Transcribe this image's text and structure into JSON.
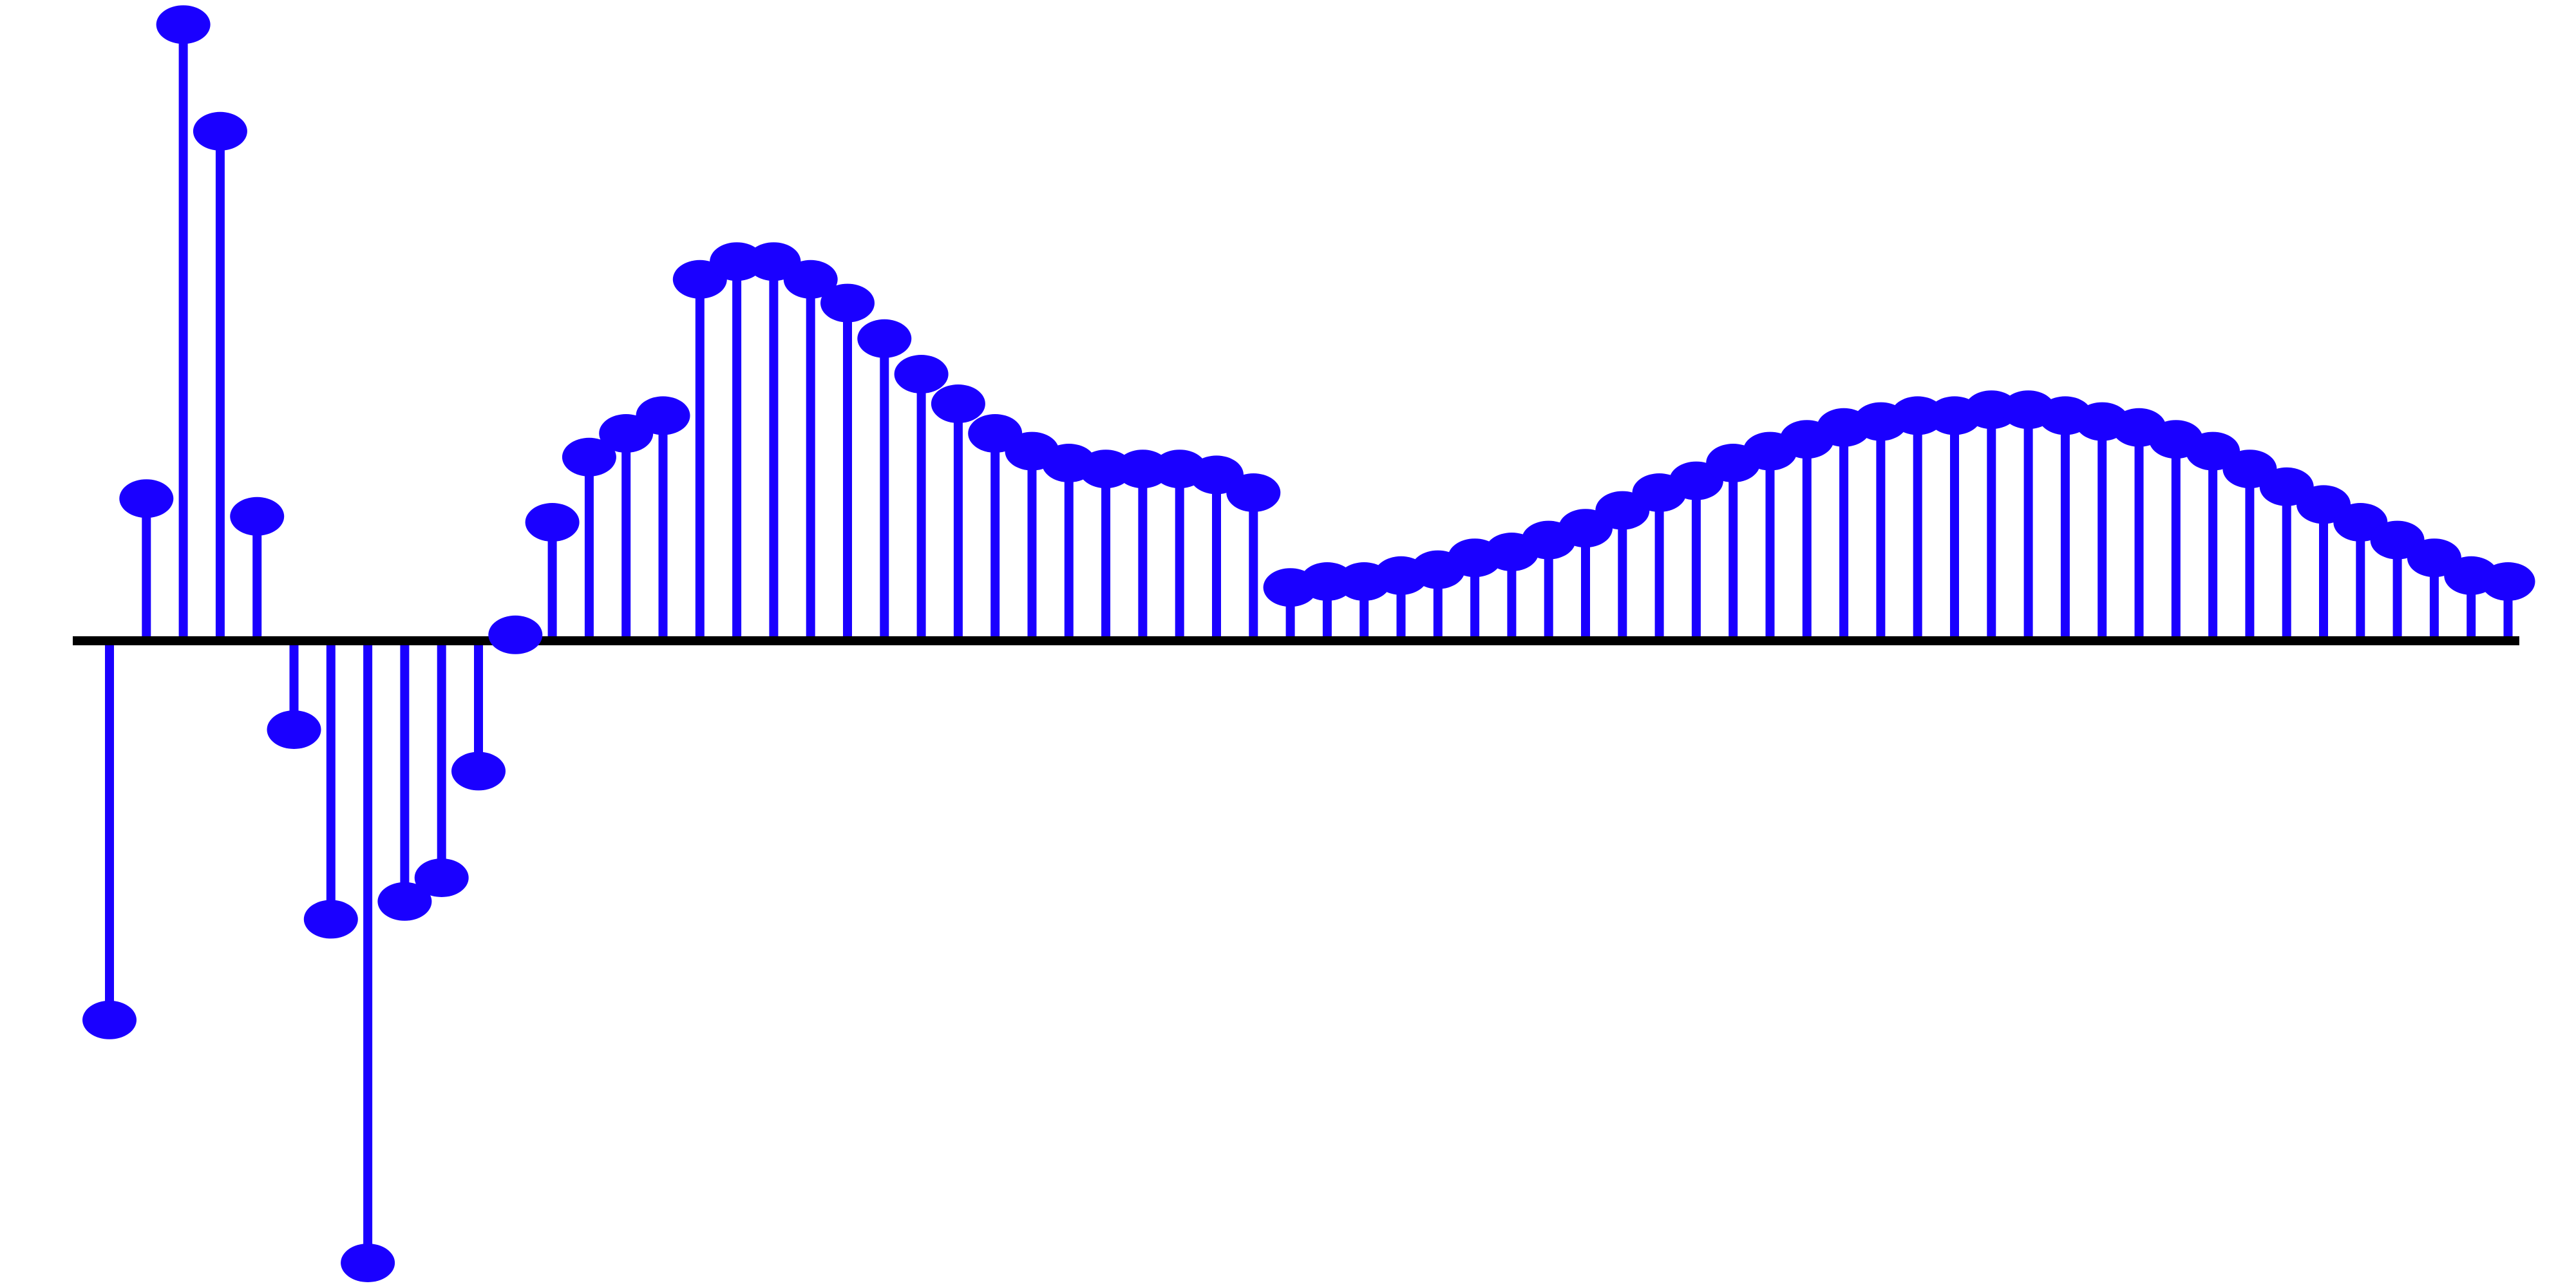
{
  "chart_data": {
    "type": "stem",
    "title": "",
    "xlabel": "",
    "ylabel": "",
    "grid": false,
    "legend": "none",
    "colors": {
      "stem": "#1a00ff",
      "baseline": "#000000",
      "background": "#ffffff"
    },
    "xlim": [
      -1,
      66
    ],
    "ylim": [
      -1.05,
      1.0
    ],
    "x": [
      0,
      1,
      2,
      3,
      4,
      5,
      6,
      7,
      8,
      9,
      10,
      11,
      12,
      13,
      14,
      15,
      16,
      17,
      18,
      19,
      20,
      21,
      22,
      23,
      24,
      25,
      26,
      27,
      28,
      29,
      30,
      31,
      32,
      33,
      34,
      35,
      36,
      37,
      38,
      39,
      40,
      41,
      42,
      43,
      44,
      45,
      46,
      47,
      48,
      49,
      50,
      51,
      52,
      53,
      54,
      55,
      56,
      57,
      58,
      59,
      60,
      61,
      62,
      63,
      64,
      65
    ],
    "series": [
      {
        "values": [
          -0.64,
          0.24,
          1.04,
          0.86,
          0.21,
          -0.15,
          -0.47,
          -1.05,
          -0.44,
          -0.4,
          -0.22,
          0.01,
          0.2,
          0.31,
          0.35,
          0.38,
          0.61,
          0.64,
          0.64,
          0.61,
          0.57,
          0.51,
          0.45,
          0.4,
          0.35,
          0.32,
          0.3,
          0.29,
          0.29,
          0.29,
          0.28,
          0.25,
          0.09,
          0.1,
          0.1,
          0.11,
          0.12,
          0.14,
          0.15,
          0.17,
          0.19,
          0.22,
          0.25,
          0.27,
          0.3,
          0.32,
          0.34,
          0.36,
          0.37,
          0.38,
          0.38,
          0.39,
          0.39,
          0.38,
          0.37,
          0.36,
          0.34,
          0.32,
          0.29,
          0.26,
          0.23,
          0.2,
          0.17,
          0.14,
          0.11,
          0.1
        ]
      }
    ]
  }
}
